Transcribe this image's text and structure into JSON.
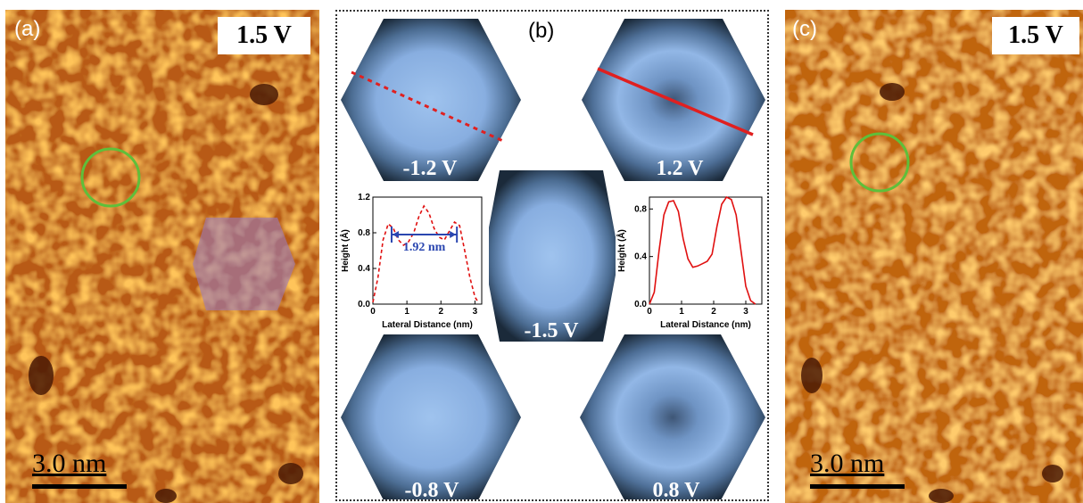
{
  "panel_a": {
    "label": "(a)",
    "bias": "1.5 V",
    "scale_bar": "3.0 nm"
  },
  "panel_b": {
    "label": "(b)",
    "images": [
      {
        "id": "tl",
        "bias": "-1.2 V"
      },
      {
        "id": "tr",
        "bias": "1.2 V"
      },
      {
        "id": "center",
        "bias": "-1.5 V"
      },
      {
        "id": "bl",
        "bias": "-0.8 V"
      },
      {
        "id": "br",
        "bias": "0.8 V"
      }
    ],
    "left_profile_annotation": "1.92 nm"
  },
  "panel_c": {
    "label": "(c)",
    "bias": "1.5 V",
    "scale_bar": "3.0 nm"
  },
  "chart_data": [
    {
      "type": "line",
      "xlabel": "Lateral Distance (nm)",
      "ylabel": "Height (Å)",
      "xlim": [
        0,
        3.2
      ],
      "ylim": [
        0,
        1.2
      ],
      "xticks": [
        "0",
        "1",
        "2",
        "3"
      ],
      "yticks": [
        "0.0",
        "0.4",
        "0.8",
        "1.2"
      ],
      "line_style": "dashed",
      "color": "#e01010",
      "x": [
        0.0,
        0.15,
        0.3,
        0.45,
        0.6,
        0.75,
        0.9,
        1.05,
        1.2,
        1.35,
        1.5,
        1.65,
        1.8,
        1.95,
        2.1,
        2.25,
        2.4,
        2.55,
        2.7,
        2.85,
        3.0,
        3.1
      ],
      "y": [
        0.02,
        0.3,
        0.72,
        0.9,
        0.85,
        0.72,
        0.66,
        0.7,
        0.8,
        0.98,
        1.1,
        1.02,
        0.85,
        0.75,
        0.72,
        0.82,
        0.92,
        0.88,
        0.6,
        0.3,
        0.08,
        0.02
      ]
    },
    {
      "type": "line",
      "xlabel": "Lateral Distance (nm)",
      "ylabel": "Height (Å)",
      "xlim": [
        0,
        3.5
      ],
      "ylim": [
        0,
        0.9
      ],
      "xticks": [
        "0",
        "1",
        "2",
        "3"
      ],
      "yticks": [
        "0.0",
        "0.4",
        "0.8"
      ],
      "line_style": "solid",
      "color": "#e01010",
      "x": [
        0.0,
        0.15,
        0.3,
        0.45,
        0.6,
        0.75,
        0.9,
        1.05,
        1.2,
        1.35,
        1.5,
        1.65,
        1.8,
        1.95,
        2.1,
        2.25,
        2.4,
        2.55,
        2.7,
        2.85,
        3.0,
        3.15,
        3.3
      ],
      "y": [
        0.0,
        0.1,
        0.45,
        0.75,
        0.86,
        0.87,
        0.78,
        0.55,
        0.38,
        0.31,
        0.32,
        0.34,
        0.36,
        0.42,
        0.65,
        0.84,
        0.9,
        0.88,
        0.75,
        0.45,
        0.15,
        0.03,
        0.0
      ]
    }
  ]
}
